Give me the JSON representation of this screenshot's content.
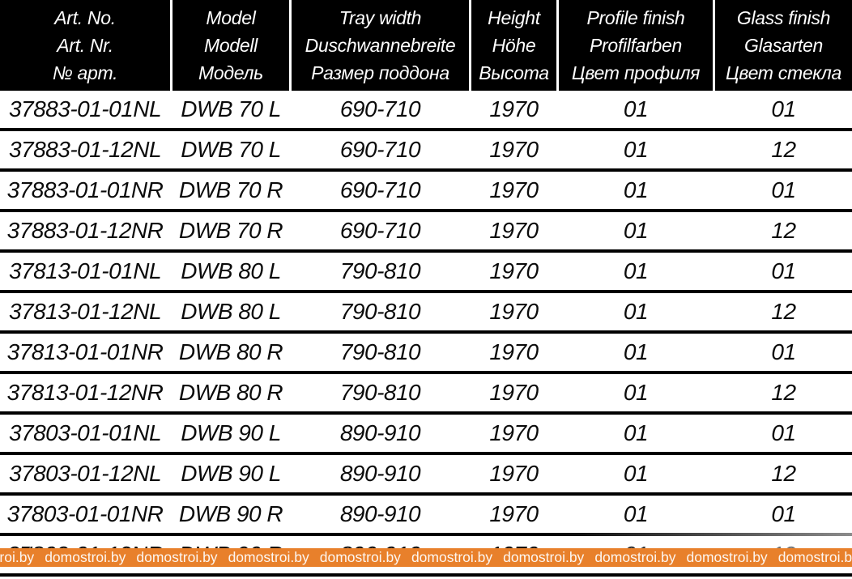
{
  "table": {
    "columns": [
      {
        "key": "art-no",
        "lines": [
          "Art. No.",
          "Art. Nr.",
          "№ арт."
        ]
      },
      {
        "key": "model",
        "lines": [
          "Model",
          "Modell",
          "Модель"
        ]
      },
      {
        "key": "tray-width",
        "lines": [
          "Tray width",
          "Duschwannebreite",
          "Размер поддона"
        ]
      },
      {
        "key": "height",
        "lines": [
          "Height",
          "Höhe",
          "Высота"
        ]
      },
      {
        "key": "profile-finish",
        "lines": [
          "Profile finish",
          "Profilfarben",
          "Цвет профиля"
        ]
      },
      {
        "key": "glass-finish",
        "lines": [
          "Glass finish",
          "Glasarten",
          "Цвет стекла"
        ]
      }
    ],
    "rows": [
      [
        "37883-01-01NL",
        "DWB 70 L",
        "690-710",
        "1970",
        "01",
        "01"
      ],
      [
        "37883-01-12NL",
        "DWB 70 L",
        "690-710",
        "1970",
        "01",
        "12"
      ],
      [
        "37883-01-01NR",
        "DWB 70 R",
        "690-710",
        "1970",
        "01",
        "01"
      ],
      [
        "37883-01-12NR",
        "DWB 70 R",
        "690-710",
        "1970",
        "01",
        "12"
      ],
      [
        "37813-01-01NL",
        "DWB 80 L",
        "790-810",
        "1970",
        "01",
        "01"
      ],
      [
        "37813-01-12NL",
        "DWB 80 L",
        "790-810",
        "1970",
        "01",
        "12"
      ],
      [
        "37813-01-01NR",
        "DWB 80 R",
        "790-810",
        "1970",
        "01",
        "01"
      ],
      [
        "37813-01-12NR",
        "DWB 80 R",
        "790-810",
        "1970",
        "01",
        "12"
      ],
      [
        "37803-01-01NL",
        "DWB 90 L",
        "890-910",
        "1970",
        "01",
        "01"
      ],
      [
        "37803-01-12NL",
        "DWB 90 L",
        "890-910",
        "1970",
        "01",
        "12"
      ],
      [
        "37803-01-01NR",
        "DWB 90 R",
        "890-910",
        "1970",
        "01",
        "01"
      ],
      [
        "37803-01-12NR",
        "DWB 90 R",
        "890-910",
        "1970",
        "01",
        "12"
      ]
    ]
  },
  "watermark": {
    "text": "domostroi.by",
    "repeat": 12
  },
  "colors": {
    "header_bg": "#000000",
    "header_text": "#FFFFFF",
    "body_text": "#0B0B0B",
    "row_line": "#000000",
    "bar_bg": "#E8802B",
    "bar_text": "#FFFFFF"
  }
}
